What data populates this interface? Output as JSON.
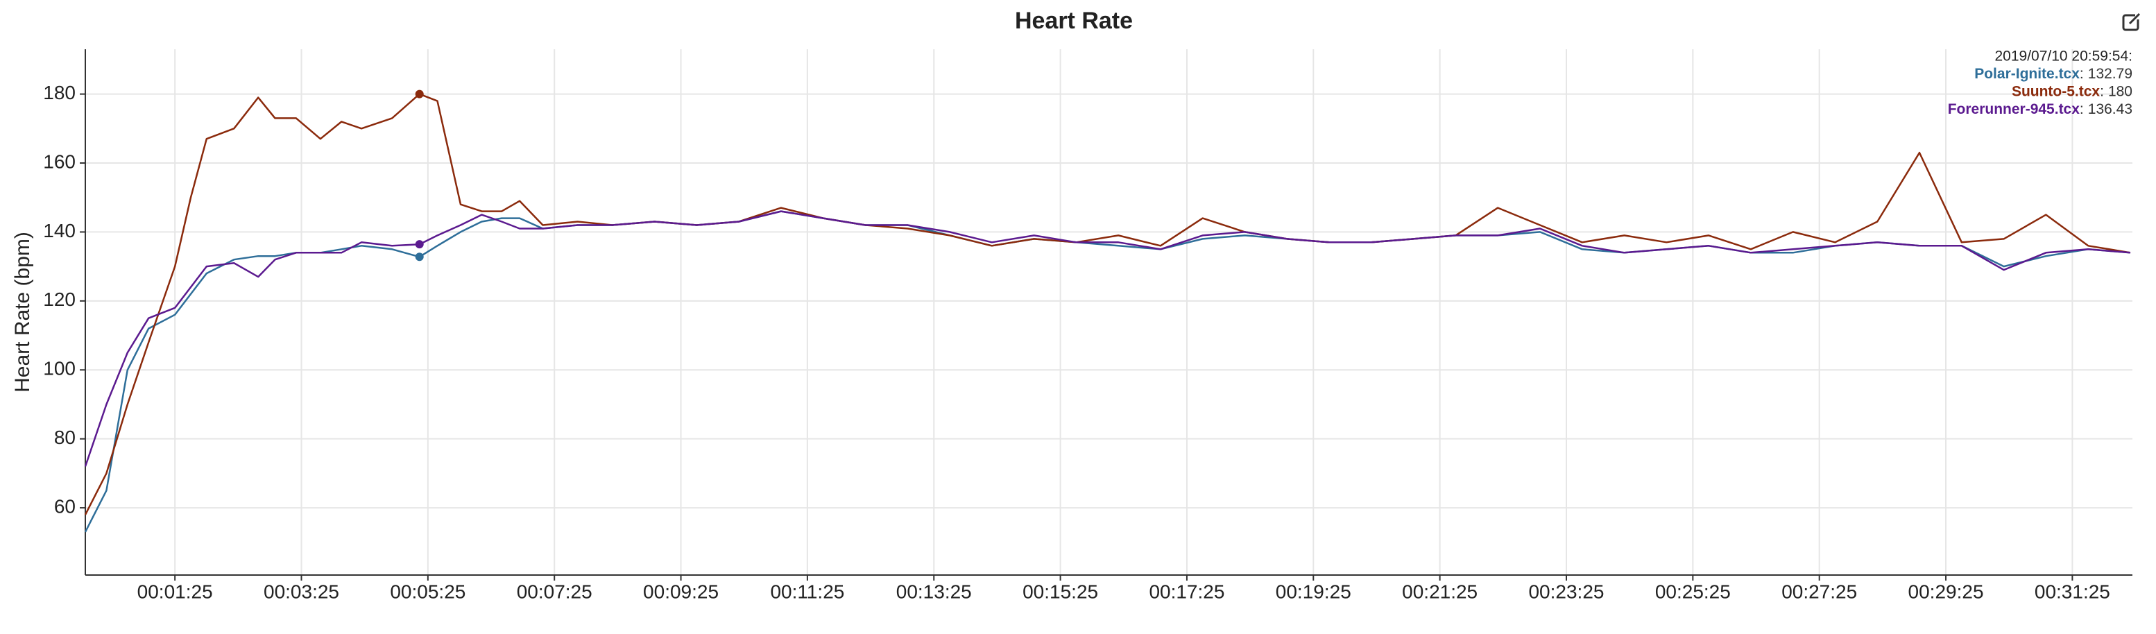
{
  "chart_data": {
    "type": "line",
    "title": "Heart Rate",
    "y_label": "Heart Rate (bpm)",
    "x": [
      0,
      20,
      40,
      60,
      85,
      100,
      115,
      141,
      164,
      180,
      200,
      223,
      243,
      262,
      291,
      317,
      334,
      356,
      376,
      395,
      412,
      434,
      467,
      500,
      540,
      580,
      620,
      660,
      700,
      740,
      780,
      820,
      860,
      900,
      940,
      980,
      1020,
      1060,
      1100,
      1140,
      1180,
      1220,
      1260,
      1300,
      1340,
      1380,
      1420,
      1460,
      1500,
      1540,
      1580,
      1620,
      1660,
      1700,
      1740,
      1780,
      1820,
      1860,
      1900,
      1940
    ],
    "series": [
      {
        "name": "Polar-Ignite.tcx",
        "color": "#2e6e99",
        "values": [
          53,
          65,
          100,
          112,
          116,
          122,
          128,
          132,
          133,
          133,
          134,
          134,
          135,
          136,
          135,
          132.79,
          136,
          140,
          143,
          144,
          144,
          141,
          142,
          142,
          143,
          142,
          143,
          146,
          144,
          142,
          142,
          139,
          136,
          138,
          137,
          136,
          135,
          138,
          139,
          138,
          137,
          137,
          138,
          139,
          139,
          140,
          135,
          134,
          135,
          136,
          134,
          134,
          136,
          137,
          136,
          136,
          130,
          133,
          135,
          134
        ]
      },
      {
        "name": "Suunto-5.tcx",
        "color": "#8b2a0c",
        "values": [
          58,
          70,
          90,
          108,
          130,
          150,
          167,
          170,
          179,
          173,
          173,
          167,
          172,
          170,
          173,
          180,
          178,
          148,
          146,
          146,
          149,
          142,
          143,
          142,
          143,
          142,
          143,
          147,
          144,
          142,
          141,
          139,
          136,
          138,
          137,
          139,
          136,
          144,
          140,
          138,
          137,
          137,
          138,
          139,
          147,
          142,
          137,
          139,
          137,
          139,
          135,
          140,
          137,
          143,
          163,
          137,
          138,
          145,
          136,
          134
        ]
      },
      {
        "name": "Forerunner-945.tcx",
        "color": "#5b1a8f",
        "values": [
          72,
          90,
          105,
          115,
          118,
          124,
          130,
          131,
          127,
          132,
          134,
          134,
          134,
          137,
          136,
          136.43,
          139,
          142,
          145,
          143,
          141,
          141,
          142,
          142,
          143,
          142,
          143,
          146,
          144,
          142,
          142,
          140,
          137,
          139,
          137,
          137,
          135,
          139,
          140,
          138,
          137,
          137,
          138,
          139,
          139,
          141,
          136,
          134,
          135,
          136,
          134,
          135,
          136,
          137,
          136,
          136,
          129,
          134,
          135,
          134
        ]
      }
    ],
    "xlim": [
      0,
      1942
    ],
    "ylim": [
      40.5,
      193
    ],
    "xticks": [
      {
        "value": 85,
        "label": "00:01:25"
      },
      {
        "value": 205,
        "label": "00:03:25"
      },
      {
        "value": 325,
        "label": "00:05:25"
      },
      {
        "value": 445,
        "label": "00:07:25"
      },
      {
        "value": 565,
        "label": "00:09:25"
      },
      {
        "value": 685,
        "label": "00:11:25"
      },
      {
        "value": 805,
        "label": "00:13:25"
      },
      {
        "value": 925,
        "label": "00:15:25"
      },
      {
        "value": 1045,
        "label": "00:17:25"
      },
      {
        "value": 1165,
        "label": "00:19:25"
      },
      {
        "value": 1285,
        "label": "00:21:25"
      },
      {
        "value": 1405,
        "label": "00:23:25"
      },
      {
        "value": 1525,
        "label": "00:25:25"
      },
      {
        "value": 1645,
        "label": "00:27:25"
      },
      {
        "value": 1765,
        "label": "00:29:25"
      },
      {
        "value": 1885,
        "label": "00:31:25"
      }
    ],
    "yticks": [
      60,
      80,
      100,
      120,
      140,
      160,
      180
    ],
    "grid": true,
    "hover": {
      "x": 317,
      "time": "2019/07/10 20:59:54:",
      "values": [
        132.79,
        180,
        136.43
      ]
    },
    "legend_separator": ":"
  }
}
